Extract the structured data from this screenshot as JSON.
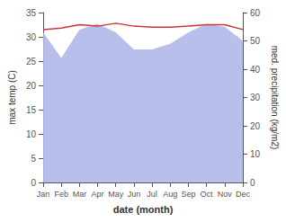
{
  "chart_data": {
    "type": "line",
    "xlabel": "date (month)",
    "ylabel": "max temp (C)",
    "y2label": "med. precipitation (kg/m2)",
    "categories": [
      "Jan",
      "Feb",
      "Mar",
      "Apr",
      "May",
      "Jun",
      "Jul",
      "Aug",
      "Sep",
      "Oct",
      "Nov",
      "Dec"
    ],
    "series": [
      {
        "type": "area",
        "axis": "y2",
        "color": "#b0b8e8",
        "values": [
          53.0,
          44.0,
          54.0,
          56.0,
          53.0,
          47.0,
          47.0,
          49.0,
          53.0,
          56.0,
          55.0,
          50.0
        ]
      },
      {
        "type": "line",
        "color": "#cc3333",
        "values": [
          31.5,
          31.8,
          32.5,
          32.2,
          32.8,
          32.2,
          32.0,
          32.0,
          32.2,
          32.5,
          32.5,
          31.5
        ]
      }
    ],
    "ylim": [
      0,
      35
    ],
    "yticks": [
      0,
      5,
      10,
      15,
      20,
      25,
      30,
      35
    ],
    "y2lim": [
      0,
      60
    ],
    "y2ticks": [
      0,
      10,
      20,
      30,
      40,
      50,
      60
    ],
    "grid": false
  }
}
